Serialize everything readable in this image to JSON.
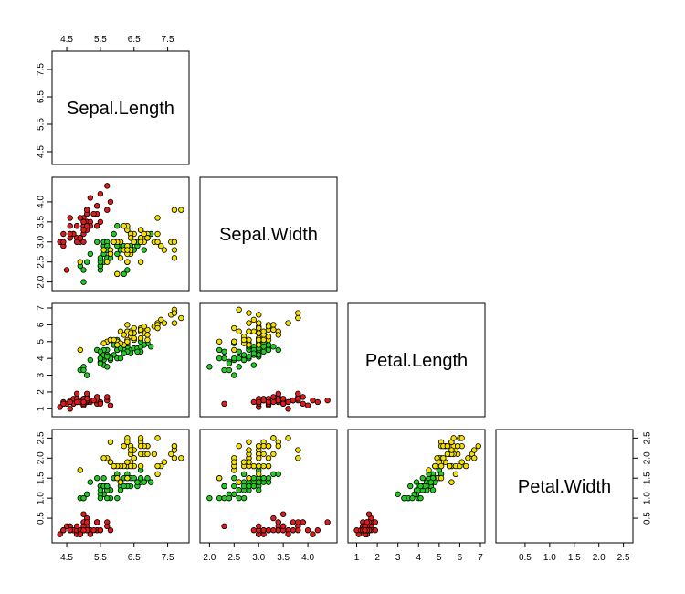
{
  "chart_data": {
    "type": "scatter",
    "plot_kind": "pairs-lower-triangle",
    "variables": [
      "Sepal.Length",
      "Sepal.Width",
      "Petal.Length",
      "Petal.Width"
    ],
    "axis_ranges": {
      "Sepal.Length": [
        4.2,
        8.0
      ],
      "Sepal.Width": [
        1.9,
        4.5
      ],
      "Petal.Length": [
        0.8,
        7.0
      ],
      "Petal.Width": [
        0.0,
        2.6
      ]
    },
    "ticks": {
      "Sepal.Length": [
        "4.5",
        "5.5",
        "6.5",
        "7.5"
      ],
      "Sepal.Width": [
        "2.0",
        "2.5",
        "3.0",
        "3.5",
        "4.0"
      ],
      "Petal.Length": [
        "1",
        "2",
        "3",
        "4",
        "5",
        "6",
        "7"
      ],
      "Petal.Width": [
        "0.5",
        "1.0",
        "1.5",
        "2.0",
        "2.5"
      ]
    },
    "grid": false,
    "legend": "none",
    "series": [
      {
        "color": "#dd1c1c",
        "points": [
          [
            5.1,
            3.5,
            1.4,
            0.2
          ],
          [
            4.9,
            3.0,
            1.4,
            0.2
          ],
          [
            4.7,
            3.2,
            1.3,
            0.2
          ],
          [
            4.6,
            3.1,
            1.5,
            0.2
          ],
          [
            5.0,
            3.6,
            1.4,
            0.2
          ],
          [
            5.4,
            3.9,
            1.7,
            0.4
          ],
          [
            4.6,
            3.4,
            1.4,
            0.3
          ],
          [
            5.0,
            3.4,
            1.5,
            0.2
          ],
          [
            4.4,
            2.9,
            1.4,
            0.2
          ],
          [
            4.9,
            3.1,
            1.5,
            0.1
          ],
          [
            5.4,
            3.7,
            1.5,
            0.2
          ],
          [
            4.8,
            3.4,
            1.6,
            0.2
          ],
          [
            4.8,
            3.0,
            1.4,
            0.1
          ],
          [
            4.3,
            3.0,
            1.1,
            0.1
          ],
          [
            5.8,
            4.0,
            1.2,
            0.2
          ],
          [
            5.7,
            4.4,
            1.5,
            0.4
          ],
          [
            5.4,
            3.9,
            1.3,
            0.4
          ],
          [
            5.1,
            3.5,
            1.4,
            0.3
          ],
          [
            5.7,
            3.8,
            1.7,
            0.3
          ],
          [
            5.1,
            3.8,
            1.5,
            0.3
          ],
          [
            5.4,
            3.4,
            1.7,
            0.2
          ],
          [
            5.1,
            3.7,
            1.5,
            0.4
          ],
          [
            4.6,
            3.6,
            1.0,
            0.2
          ],
          [
            5.1,
            3.3,
            1.7,
            0.5
          ],
          [
            4.8,
            3.4,
            1.9,
            0.2
          ],
          [
            5.0,
            3.0,
            1.6,
            0.2
          ],
          [
            5.0,
            3.4,
            1.6,
            0.4
          ],
          [
            5.2,
            3.5,
            1.5,
            0.2
          ],
          [
            5.2,
            3.4,
            1.4,
            0.2
          ],
          [
            4.7,
            3.2,
            1.6,
            0.2
          ],
          [
            4.8,
            3.1,
            1.6,
            0.2
          ],
          [
            5.4,
            3.4,
            1.5,
            0.4
          ],
          [
            5.2,
            4.1,
            1.5,
            0.1
          ],
          [
            5.5,
            4.2,
            1.4,
            0.2
          ],
          [
            4.9,
            3.1,
            1.5,
            0.2
          ],
          [
            5.0,
            3.2,
            1.2,
            0.2
          ],
          [
            5.5,
            3.5,
            1.3,
            0.2
          ],
          [
            4.9,
            3.6,
            1.4,
            0.1
          ],
          [
            4.4,
            3.0,
            1.3,
            0.2
          ],
          [
            5.1,
            3.4,
            1.5,
            0.2
          ],
          [
            5.0,
            3.5,
            1.3,
            0.3
          ],
          [
            4.5,
            2.3,
            1.3,
            0.3
          ],
          [
            4.4,
            3.2,
            1.3,
            0.2
          ],
          [
            5.0,
            3.5,
            1.6,
            0.6
          ],
          [
            5.1,
            3.8,
            1.9,
            0.4
          ],
          [
            4.8,
            3.0,
            1.4,
            0.3
          ],
          [
            5.1,
            3.8,
            1.6,
            0.2
          ],
          [
            4.6,
            3.2,
            1.4,
            0.2
          ],
          [
            5.3,
            3.7,
            1.5,
            0.2
          ],
          [
            5.0,
            3.3,
            1.4,
            0.2
          ]
        ]
      },
      {
        "color": "#22cc22",
        "points": [
          [
            7.0,
            3.2,
            4.7,
            1.4
          ],
          [
            6.4,
            3.2,
            4.5,
            1.5
          ],
          [
            6.9,
            3.1,
            4.9,
            1.5
          ],
          [
            5.5,
            2.3,
            4.0,
            1.3
          ],
          [
            6.5,
            2.8,
            4.6,
            1.5
          ],
          [
            5.7,
            2.8,
            4.5,
            1.3
          ],
          [
            6.3,
            3.3,
            4.7,
            1.6
          ],
          [
            4.9,
            2.4,
            3.3,
            1.0
          ],
          [
            6.6,
            2.9,
            4.6,
            1.3
          ],
          [
            5.2,
            2.7,
            3.9,
            1.4
          ],
          [
            5.0,
            2.0,
            3.5,
            1.0
          ],
          [
            5.9,
            3.0,
            4.2,
            1.5
          ],
          [
            6.0,
            2.2,
            4.0,
            1.0
          ],
          [
            6.1,
            2.9,
            4.7,
            1.4
          ],
          [
            5.6,
            2.9,
            3.6,
            1.3
          ],
          [
            6.7,
            3.1,
            4.4,
            1.4
          ],
          [
            5.6,
            3.0,
            4.5,
            1.5
          ],
          [
            5.8,
            2.7,
            4.1,
            1.0
          ],
          [
            6.2,
            2.2,
            4.5,
            1.5
          ],
          [
            5.6,
            2.5,
            3.9,
            1.1
          ],
          [
            5.9,
            3.2,
            4.8,
            1.8
          ],
          [
            6.1,
            2.8,
            4.0,
            1.3
          ],
          [
            6.3,
            2.5,
            4.9,
            1.5
          ],
          [
            6.1,
            2.8,
            4.7,
            1.2
          ],
          [
            6.4,
            2.9,
            4.3,
            1.3
          ],
          [
            6.6,
            3.0,
            4.4,
            1.4
          ],
          [
            6.8,
            2.8,
            4.8,
            1.4
          ],
          [
            6.7,
            3.0,
            5.0,
            1.7
          ],
          [
            6.0,
            2.9,
            4.5,
            1.5
          ],
          [
            5.7,
            2.6,
            3.5,
            1.0
          ],
          [
            5.5,
            2.4,
            3.8,
            1.1
          ],
          [
            5.5,
            2.4,
            3.7,
            1.0
          ],
          [
            5.8,
            2.7,
            3.9,
            1.2
          ],
          [
            6.0,
            2.7,
            5.1,
            1.6
          ],
          [
            5.4,
            3.0,
            4.5,
            1.5
          ],
          [
            6.0,
            3.4,
            4.5,
            1.6
          ],
          [
            6.7,
            3.1,
            4.7,
            1.5
          ],
          [
            6.3,
            2.3,
            4.4,
            1.3
          ],
          [
            5.6,
            3.0,
            4.1,
            1.3
          ],
          [
            5.5,
            2.5,
            4.0,
            1.3
          ],
          [
            5.5,
            2.6,
            4.4,
            1.2
          ],
          [
            6.1,
            3.0,
            4.6,
            1.4
          ],
          [
            5.8,
            2.6,
            4.0,
            1.2
          ],
          [
            5.0,
            2.3,
            3.3,
            1.0
          ],
          [
            5.6,
            2.7,
            4.2,
            1.3
          ],
          [
            5.7,
            3.0,
            4.2,
            1.2
          ],
          [
            5.7,
            2.9,
            4.2,
            1.3
          ],
          [
            6.2,
            2.9,
            4.3,
            1.3
          ],
          [
            5.1,
            2.5,
            3.0,
            1.1
          ],
          [
            5.7,
            2.8,
            4.1,
            1.3
          ]
        ]
      },
      {
        "color": "#f5e000",
        "points": [
          [
            6.3,
            3.3,
            6.0,
            2.5
          ],
          [
            5.8,
            2.7,
            5.1,
            1.9
          ],
          [
            7.1,
            3.0,
            5.9,
            2.1
          ],
          [
            6.3,
            2.9,
            5.6,
            1.8
          ],
          [
            6.5,
            3.0,
            5.8,
            2.2
          ],
          [
            7.6,
            3.0,
            6.6,
            2.1
          ],
          [
            4.9,
            2.5,
            4.5,
            1.7
          ],
          [
            7.3,
            2.9,
            6.3,
            1.8
          ],
          [
            6.7,
            2.5,
            5.8,
            1.8
          ],
          [
            7.2,
            3.6,
            6.1,
            2.5
          ],
          [
            6.5,
            3.2,
            5.1,
            2.0
          ],
          [
            6.4,
            2.7,
            5.3,
            1.9
          ],
          [
            6.8,
            3.0,
            5.5,
            2.1
          ],
          [
            5.7,
            2.5,
            5.0,
            2.0
          ],
          [
            5.8,
            2.8,
            5.1,
            2.4
          ],
          [
            6.4,
            3.2,
            5.3,
            2.3
          ],
          [
            6.5,
            3.0,
            5.5,
            1.8
          ],
          [
            7.7,
            3.8,
            6.7,
            2.2
          ],
          [
            7.7,
            2.6,
            6.9,
            2.3
          ],
          [
            6.0,
            2.2,
            5.0,
            1.5
          ],
          [
            6.9,
            3.2,
            5.7,
            2.3
          ],
          [
            5.6,
            2.8,
            4.9,
            2.0
          ],
          [
            7.7,
            2.8,
            6.7,
            2.0
          ],
          [
            6.3,
            2.7,
            4.9,
            1.8
          ],
          [
            6.7,
            3.3,
            5.7,
            2.1
          ],
          [
            7.2,
            3.2,
            6.0,
            1.8
          ],
          [
            6.2,
            2.8,
            4.8,
            1.8
          ],
          [
            6.1,
            3.0,
            4.9,
            1.8
          ],
          [
            6.4,
            2.8,
            5.6,
            2.1
          ],
          [
            7.2,
            3.0,
            5.8,
            1.6
          ],
          [
            7.4,
            2.8,
            6.1,
            1.9
          ],
          [
            7.9,
            3.8,
            6.4,
            2.0
          ],
          [
            6.4,
            2.8,
            5.6,
            2.2
          ],
          [
            6.3,
            2.8,
            5.1,
            1.5
          ],
          [
            6.1,
            2.6,
            5.6,
            1.4
          ],
          [
            7.7,
            3.0,
            6.1,
            2.3
          ],
          [
            6.3,
            3.4,
            5.6,
            2.4
          ],
          [
            6.4,
            3.1,
            5.5,
            1.8
          ],
          [
            6.0,
            3.0,
            4.8,
            1.8
          ],
          [
            6.9,
            3.1,
            5.4,
            2.1
          ],
          [
            6.7,
            3.1,
            5.6,
            2.4
          ],
          [
            6.9,
            3.1,
            5.1,
            2.3
          ],
          [
            5.8,
            2.7,
            5.1,
            1.9
          ],
          [
            6.8,
            3.2,
            5.9,
            2.3
          ],
          [
            6.7,
            3.3,
            5.7,
            2.5
          ],
          [
            6.7,
            3.0,
            5.2,
            2.3
          ],
          [
            6.3,
            2.5,
            5.0,
            1.9
          ],
          [
            6.5,
            3.0,
            5.2,
            2.0
          ],
          [
            6.2,
            3.4,
            5.4,
            2.3
          ],
          [
            5.9,
            3.0,
            5.1,
            1.8
          ]
        ]
      }
    ]
  }
}
